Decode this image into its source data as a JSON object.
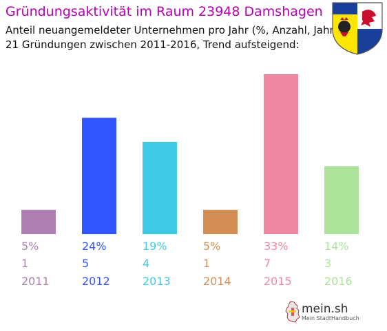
{
  "header": {
    "title": "Gründungsaktivität im Raum 23948 Damshagen",
    "subtitle_line1": "Anteil neuangemeldeter Unternehmen pro Jahr (%, Anzahl, Jahr)",
    "subtitle_line2": "21 Gründungen zwischen 2011-2016, Trend aufsteigend:"
  },
  "branding": {
    "name": "mein.sh",
    "tagline": "Mein StadtHandbuch",
    "icon": "germany-map-icon"
  },
  "emblem": {
    "icon": "coat-of-arms-icon",
    "colors": [
      "#1a3f9a",
      "#ffe600",
      "#ffffff",
      "#c8102e"
    ]
  },
  "chart_data": {
    "type": "bar",
    "categories": [
      "2011",
      "2012",
      "2013",
      "2014",
      "2015",
      "2016"
    ],
    "values": [
      5,
      24,
      19,
      5,
      33,
      14
    ],
    "percent_labels": [
      "5%",
      "24%",
      "19%",
      "5%",
      "33%",
      "14%"
    ],
    "counts": [
      1,
      5,
      4,
      1,
      7,
      3
    ],
    "colors": [
      "#ad7fb2",
      "#3355ff",
      "#3fcbe6",
      "#d38e56",
      "#ee88a4",
      "#ade39b"
    ],
    "grid": false,
    "legend": "none"
  }
}
